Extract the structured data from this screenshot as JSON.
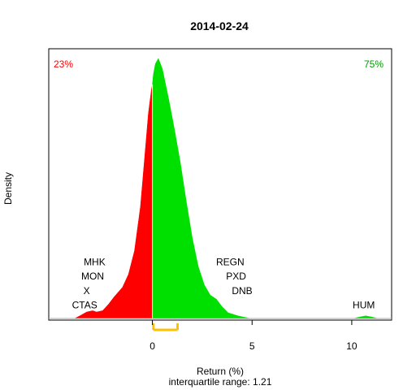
{
  "chart_data": {
    "type": "area",
    "title": "2014-02-24",
    "xlabel": "Return (%)",
    "subtitle": "interquartile range: 1.21",
    "ylabel": "Density",
    "xlim": [
      -5.2,
      12
    ],
    "ylim": [
      0,
      1.0
    ],
    "x_ticks": [
      0,
      5,
      10
    ],
    "pct_below_zero": "23%",
    "pct_above_zero": "75%",
    "colors": {
      "negative": "#ff0000",
      "positive": "#00e000",
      "iqr": "#ffc000",
      "baseline": "#aaaaaa"
    },
    "density_points": [
      [
        -3.9,
        0.0
      ],
      [
        -3.6,
        0.012
      ],
      [
        -3.3,
        0.025
      ],
      [
        -3.0,
        0.03
      ],
      [
        -2.8,
        0.025
      ],
      [
        -2.5,
        0.03
      ],
      [
        -2.2,
        0.055
      ],
      [
        -1.9,
        0.085
      ],
      [
        -1.5,
        0.12
      ],
      [
        -1.2,
        0.17
      ],
      [
        -0.9,
        0.26
      ],
      [
        -0.6,
        0.43
      ],
      [
        -0.4,
        0.61
      ],
      [
        -0.2,
        0.79
      ],
      [
        -0.05,
        0.88
      ],
      [
        0.0,
        0.9
      ],
      [
        0.05,
        0.94
      ],
      [
        0.15,
        0.98
      ],
      [
        0.3,
        1.0
      ],
      [
        0.5,
        0.96
      ],
      [
        0.8,
        0.85
      ],
      [
        1.1,
        0.73
      ],
      [
        1.4,
        0.6
      ],
      [
        1.7,
        0.45
      ],
      [
        2.0,
        0.31
      ],
      [
        2.3,
        0.2
      ],
      [
        2.6,
        0.13
      ],
      [
        2.9,
        0.09
      ],
      [
        3.2,
        0.075
      ],
      [
        3.5,
        0.045
      ],
      [
        3.8,
        0.022
      ],
      [
        4.3,
        0.01
      ],
      [
        4.9,
        0.0
      ],
      [
        10.1,
        0.0
      ],
      [
        10.4,
        0.006
      ],
      [
        10.7,
        0.01
      ],
      [
        11.0,
        0.006
      ],
      [
        11.3,
        0.0
      ]
    ],
    "iqr": [
      0.05,
      1.26
    ],
    "annotations": [
      {
        "text": "MHK",
        "x": -2.9,
        "y": 0.217
      },
      {
        "text": "MON",
        "x": -3.0,
        "y": 0.162
      },
      {
        "text": "X",
        "x": -3.3,
        "y": 0.107
      },
      {
        "text": "CTAS",
        "x": -3.4,
        "y": 0.052
      },
      {
        "text": "REGN",
        "x": 3.9,
        "y": 0.217
      },
      {
        "text": "PXD",
        "x": 4.2,
        "y": 0.162
      },
      {
        "text": "DNB",
        "x": 4.5,
        "y": 0.107
      },
      {
        "text": "HUM",
        "x": 10.6,
        "y": 0.052
      }
    ]
  }
}
